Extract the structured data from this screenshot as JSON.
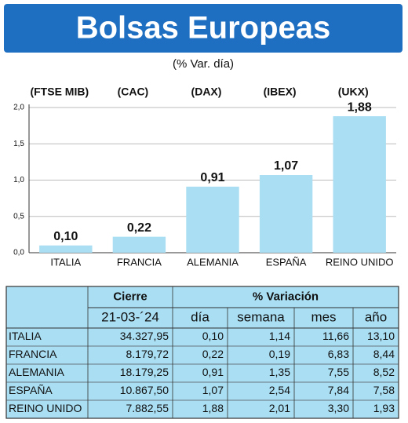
{
  "chart_data": {
    "type": "bar",
    "title": "Bolsas Europeas",
    "subtitle": "(% Var. día)",
    "index_labels": [
      "(FTSE MIB)",
      "(CAC)",
      "(DAX)",
      "(IBEX)",
      "(UKX)"
    ],
    "categories": [
      "ITALIA",
      "FRANCIA",
      "ALEMANIA",
      "ESPAÑA",
      "REINO UNIDO"
    ],
    "values": [
      0.1,
      0.22,
      0.91,
      1.07,
      1.88
    ],
    "value_labels": [
      "0,10",
      "0,22",
      "0,91",
      "1,07",
      "1,88"
    ],
    "color": "#a9def3",
    "ylim": [
      0,
      2
    ],
    "yticks": [
      {
        "value": 0,
        "label": "0,0"
      },
      {
        "value": 0.5,
        "label": "0,5"
      },
      {
        "value": 1,
        "label": "1,0"
      },
      {
        "value": 1.5,
        "label": "1,5"
      },
      {
        "value": 2,
        "label": "2,0"
      }
    ],
    "grid": true
  },
  "table": {
    "header": [
      "Cierre",
      "% Variación"
    ],
    "date": "21-03-´24",
    "columns": [
      "día",
      "semana",
      "mes",
      "año"
    ],
    "rows": [
      [
        "ITALIA",
        "34.327,95",
        "0,10",
        "1,14",
        "11,66",
        "13,10"
      ],
      [
        "FRANCIA",
        "8.179,72",
        "0,22",
        "0,19",
        "6,83",
        "8,44"
      ],
      [
        "ALEMANIA",
        "18.179,25",
        "0,91",
        "1,35",
        "7,55",
        "8,52"
      ],
      [
        "ESPAÑA",
        "10.867,50",
        "1,07",
        "2,54",
        "7,84",
        "7,58"
      ],
      [
        "REINO UNIDO",
        "7.882,55",
        "1,88",
        "2,01",
        "3,30",
        "1,93"
      ]
    ]
  }
}
